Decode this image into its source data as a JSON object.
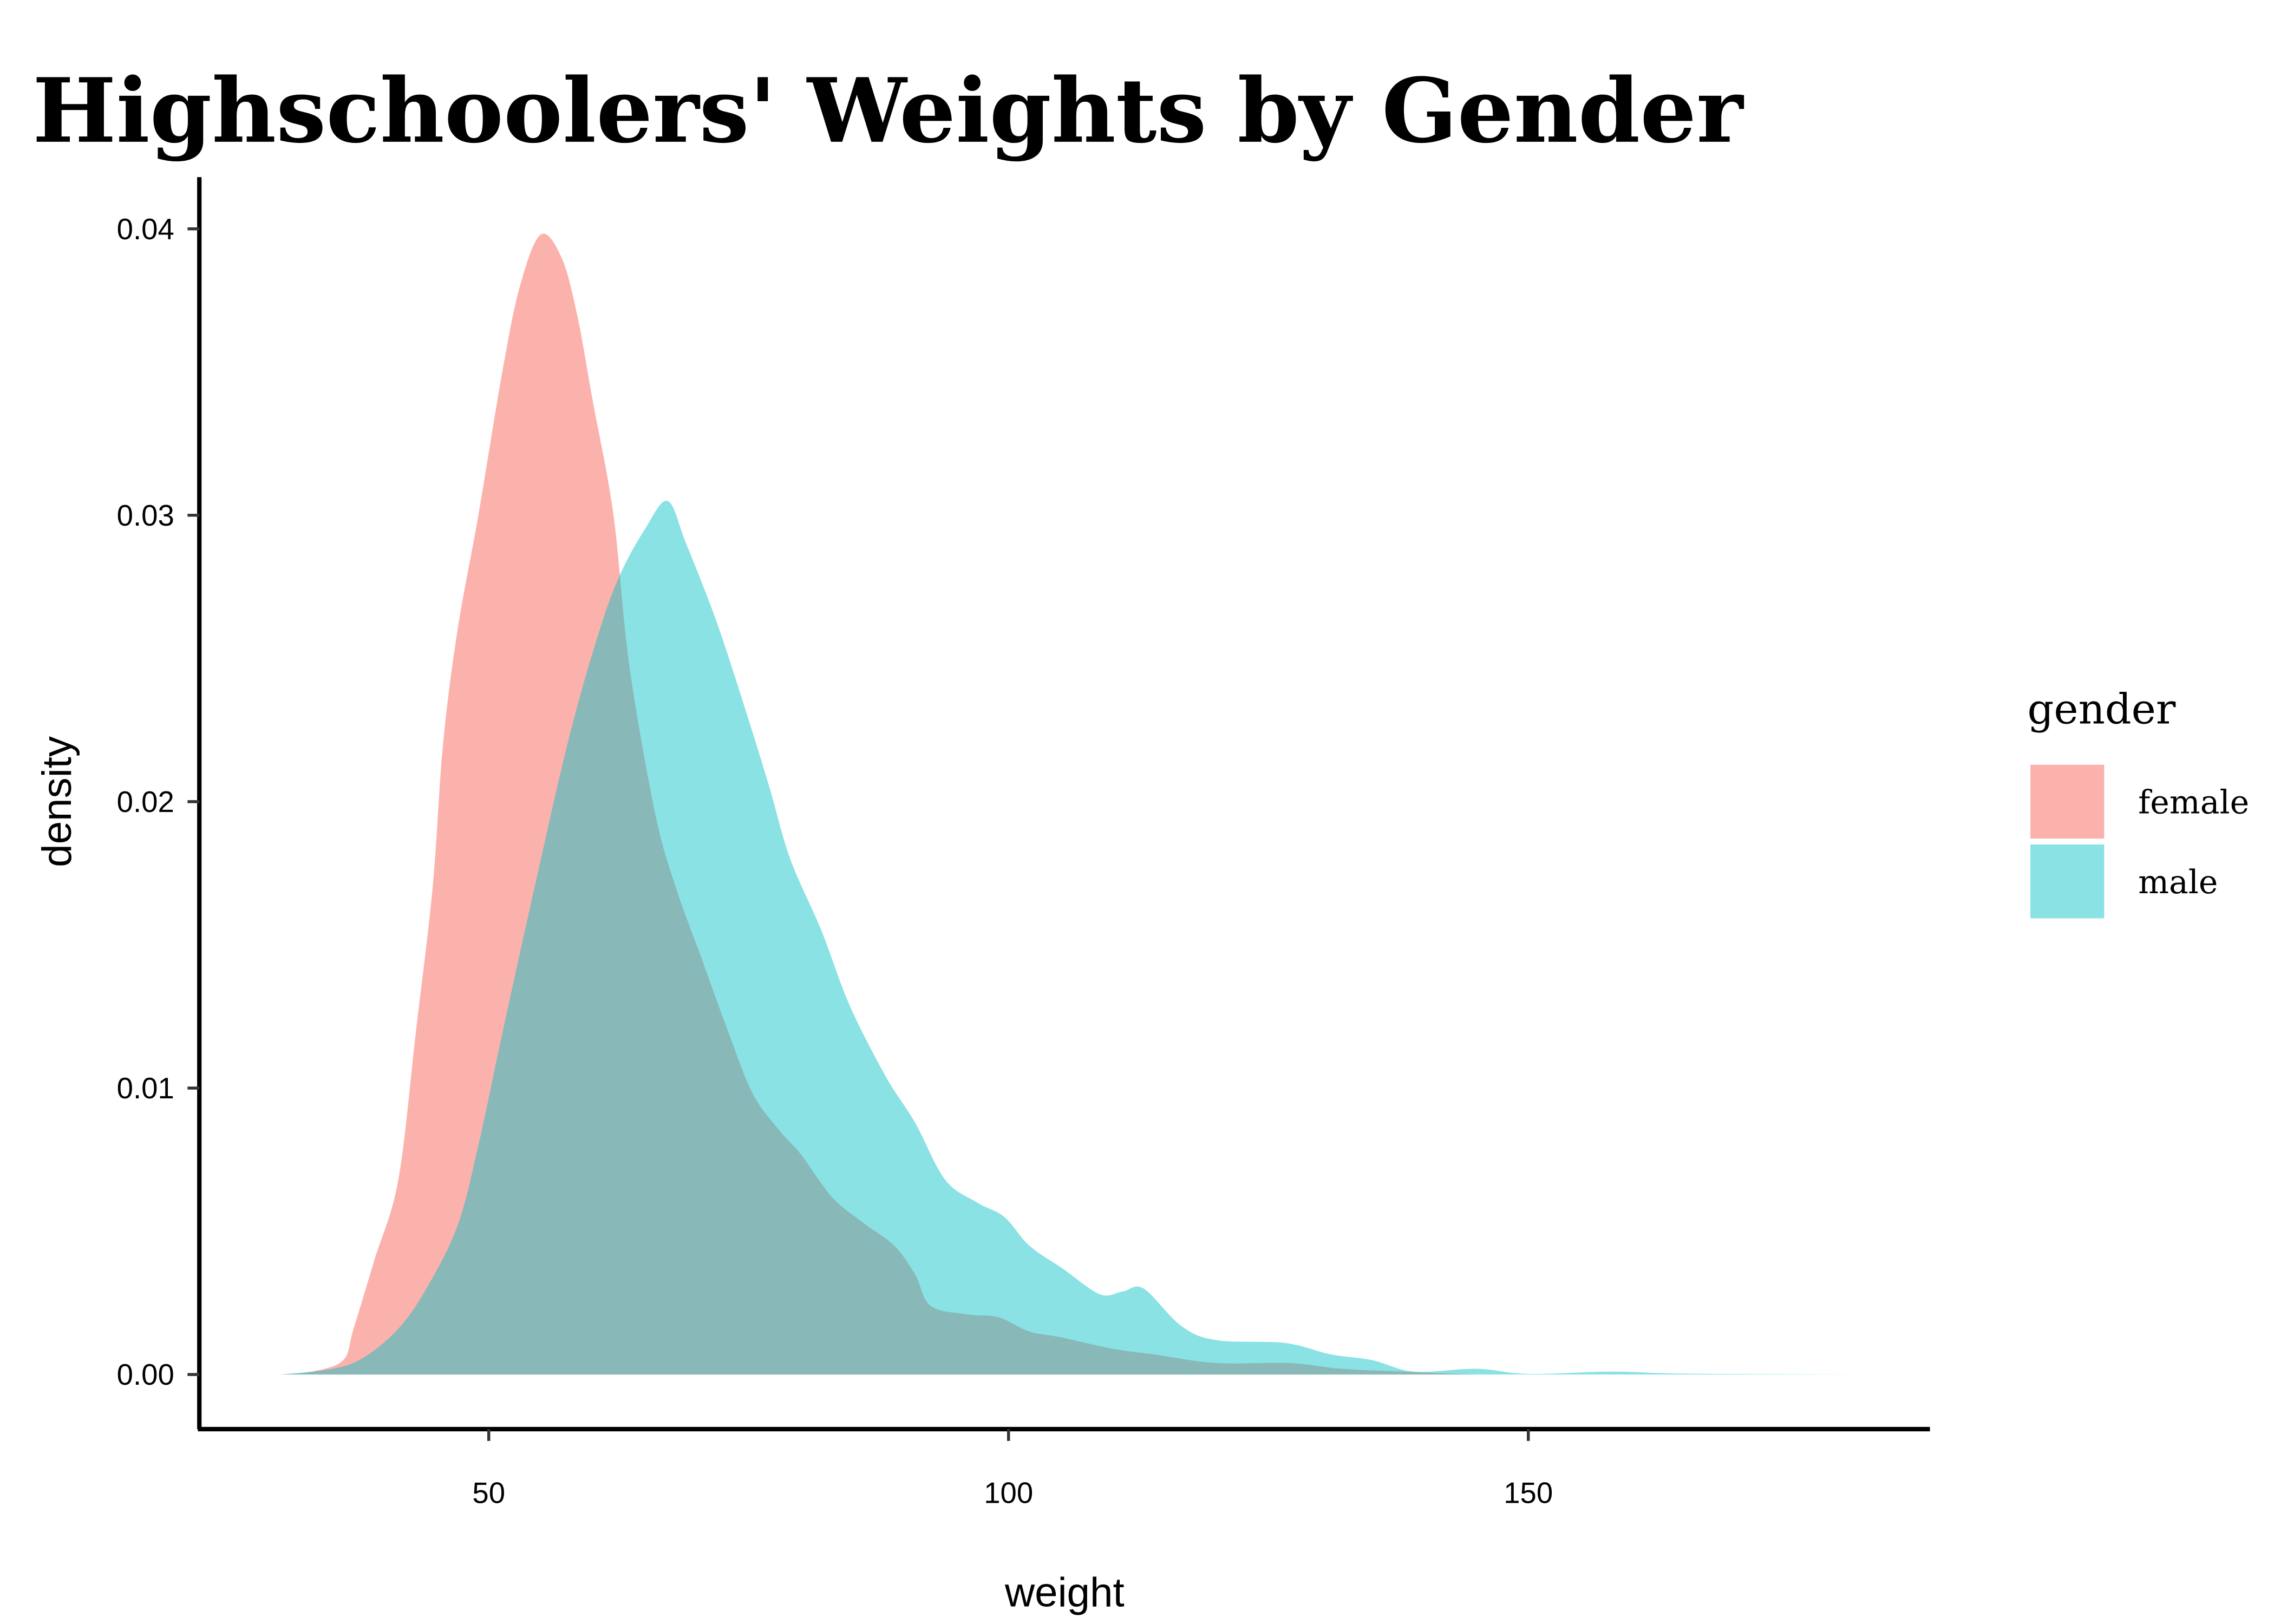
{
  "chart_data": {
    "type": "area",
    "title": "Highschoolers' Weights by Gender",
    "xlabel": "weight",
    "ylabel": "density",
    "xlim": [
      25,
      190
    ],
    "ylim": [
      -0.0019,
      0.042
    ],
    "x_ticks": [
      "50",
      "100",
      "150"
    ],
    "x_tick_values": [
      50,
      100,
      150
    ],
    "y_ticks": [
      "0.00",
      "0.01",
      "0.02",
      "0.03",
      "0.04"
    ],
    "y_tick_values": [
      0,
      0.01,
      0.02,
      0.03,
      0.04
    ],
    "grid": false,
    "legend": {
      "title": "gender",
      "placement": "right"
    },
    "series": [
      {
        "name": "female",
        "color": "#F8766D",
        "points": [
          [
            30,
            0
          ],
          [
            33,
            0.0001
          ],
          [
            36,
            0.0005
          ],
          [
            37,
            0.0016
          ],
          [
            39,
            0.004
          ],
          [
            41.3,
            0.0068
          ],
          [
            43,
            0.012
          ],
          [
            44.6,
            0.017
          ],
          [
            45.6,
            0.022
          ],
          [
            47,
            0.026
          ],
          [
            49,
            0.03
          ],
          [
            51.3,
            0.035
          ],
          [
            53,
            0.038
          ],
          [
            55,
            0.0398
          ],
          [
            57,
            0.039
          ],
          [
            58.5,
            0.037
          ],
          [
            60,
            0.034
          ],
          [
            62,
            0.03
          ],
          [
            63.5,
            0.0248
          ],
          [
            66,
            0.0196
          ],
          [
            68,
            0.017
          ],
          [
            70.5,
            0.0145
          ],
          [
            73,
            0.012
          ],
          [
            75.4,
            0.0098
          ],
          [
            78,
            0.0085
          ],
          [
            80,
            0.0077
          ],
          [
            83,
            0.0062
          ],
          [
            86,
            0.0053
          ],
          [
            89,
            0.0045
          ],
          [
            91,
            0.0035
          ],
          [
            92.5,
            0.0024
          ],
          [
            96,
            0.0021
          ],
          [
            99,
            0.002
          ],
          [
            102,
            0.0015
          ],
          [
            105,
            0.0013
          ],
          [
            110,
            0.0009
          ],
          [
            114,
            0.0007
          ],
          [
            120,
            0.0004
          ],
          [
            127,
            0.0004
          ],
          [
            132,
            0.0002
          ],
          [
            138,
            0.0001
          ],
          [
            145,
            0
          ],
          [
            150,
            0
          ]
        ]
      },
      {
        "name": "male",
        "color": "#00BFC4",
        "points": [
          [
            30,
            0
          ],
          [
            35,
            0.0002
          ],
          [
            38,
            0.0006
          ],
          [
            41.3,
            0.0016
          ],
          [
            44,
            0.003
          ],
          [
            47,
            0.0052
          ],
          [
            49,
            0.008
          ],
          [
            51.3,
            0.0119
          ],
          [
            54.4,
            0.017
          ],
          [
            57.7,
            0.0222
          ],
          [
            60.5,
            0.0258
          ],
          [
            62.6,
            0.0279
          ],
          [
            65,
            0.0295
          ],
          [
            67.2,
            0.0305
          ],
          [
            69,
            0.029
          ],
          [
            71.9,
            0.0263
          ],
          [
            74.7,
            0.0232
          ],
          [
            77,
            0.0205
          ],
          [
            79,
            0.018
          ],
          [
            82,
            0.0155
          ],
          [
            84.7,
            0.0129
          ],
          [
            88.2,
            0.0104
          ],
          [
            91,
            0.0088
          ],
          [
            93.9,
            0.0068
          ],
          [
            97,
            0.006
          ],
          [
            99.6,
            0.0055
          ],
          [
            102,
            0.0045
          ],
          [
            105.2,
            0.0037
          ],
          [
            108.8,
            0.0028
          ],
          [
            111,
            0.0029
          ],
          [
            113,
            0.003
          ],
          [
            116.6,
            0.0017
          ],
          [
            120,
            0.0012
          ],
          [
            126.6,
            0.0011
          ],
          [
            131,
            0.0007
          ],
          [
            135,
            0.0005
          ],
          [
            139,
            0.0001
          ],
          [
            145,
            0.0002
          ],
          [
            150,
            2e-05
          ],
          [
            158,
            0.0001
          ],
          [
            165,
            3e-05
          ],
          [
            181,
            0
          ]
        ]
      }
    ]
  }
}
